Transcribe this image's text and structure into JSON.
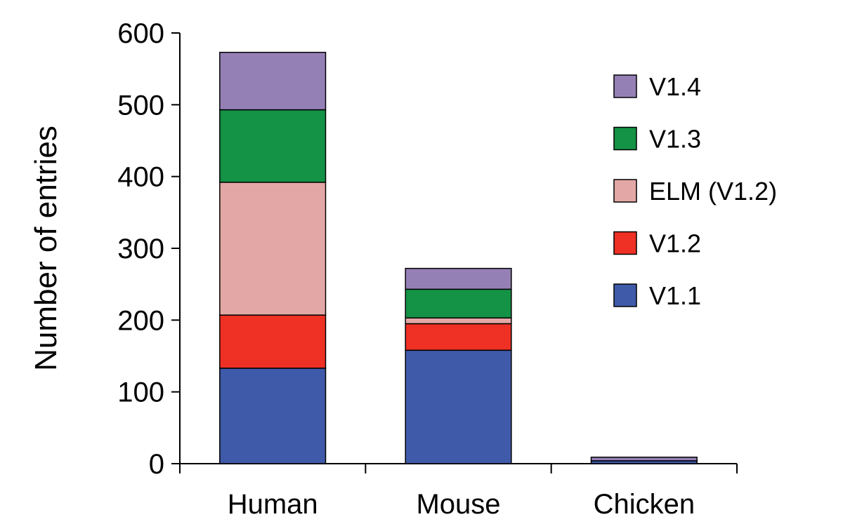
{
  "chart_data": {
    "type": "bar",
    "stacked": true,
    "title": "",
    "xlabel": "",
    "ylabel": "Number of entries",
    "ylim": [
      0,
      600
    ],
    "yticks": [
      0,
      100,
      200,
      300,
      400,
      500,
      600
    ],
    "grid": false,
    "legend_position": "right",
    "categories": [
      "Human",
      "Mouse",
      "Chicken"
    ],
    "series": [
      {
        "name": "V1.1",
        "color": "#3f5aa8",
        "values": [
          133,
          158,
          4
        ]
      },
      {
        "name": "V1.2",
        "color": "#ee3124",
        "values": [
          74,
          37,
          0
        ]
      },
      {
        "name": "ELM (V1.2)",
        "color": "#e3a8a6",
        "values": [
          185,
          8,
          0
        ]
      },
      {
        "name": "V1.3",
        "color": "#149245",
        "values": [
          101,
          40,
          0
        ]
      },
      {
        "name": "V1.4",
        "color": "#9580b6",
        "values": [
          80,
          29,
          5
        ]
      }
    ]
  }
}
